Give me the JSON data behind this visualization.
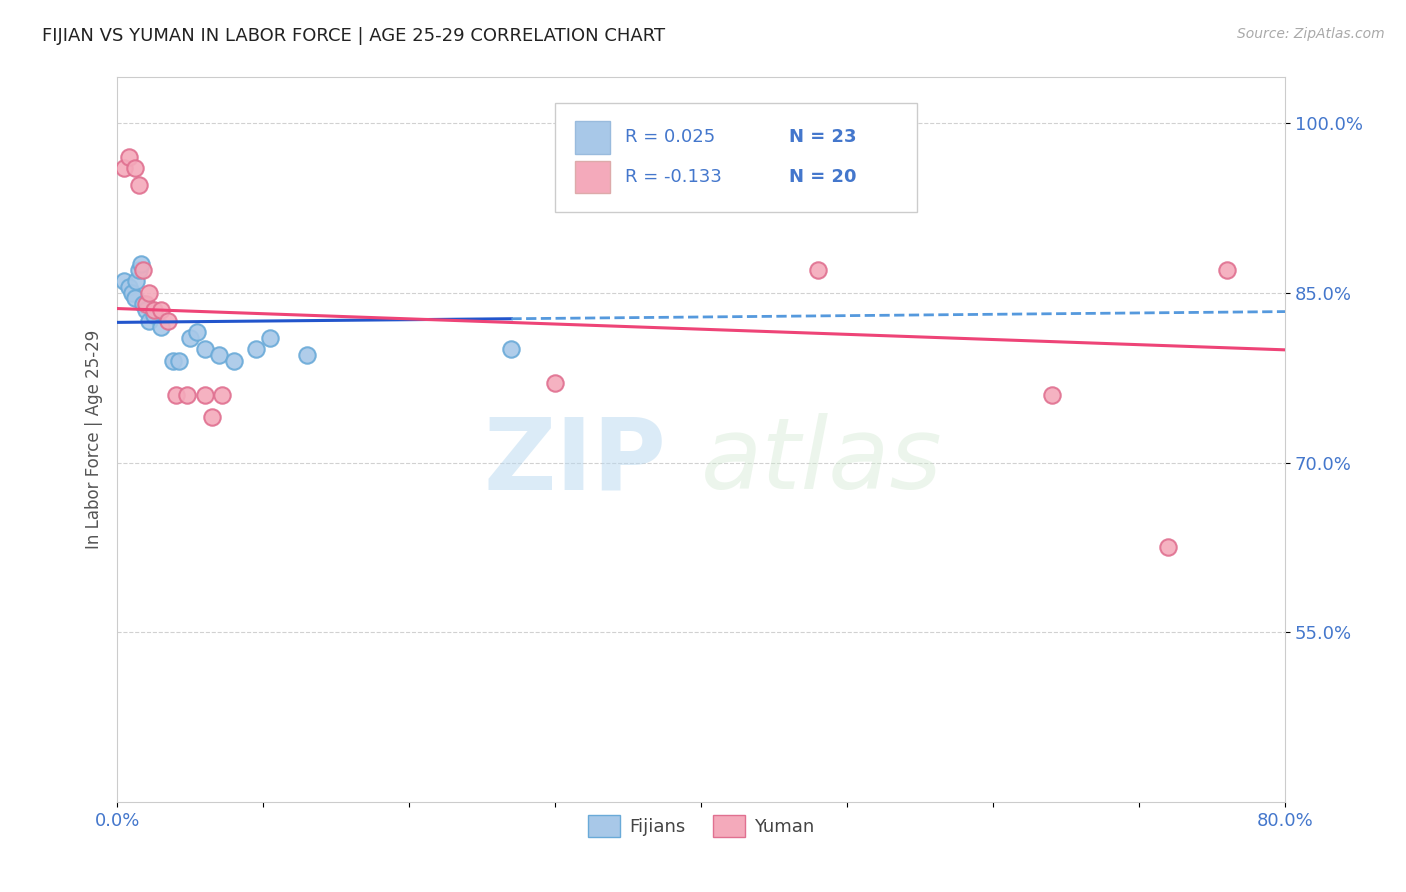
{
  "title": "FIJIAN VS YUMAN IN LABOR FORCE | AGE 25-29 CORRELATION CHART",
  "source_text": "Source: ZipAtlas.com",
  "ylabel": "In Labor Force | Age 25-29",
  "xlim": [
    0.0,
    0.8
  ],
  "ylim": [
    0.4,
    1.04
  ],
  "xticks": [
    0.0,
    0.1,
    0.2,
    0.3,
    0.4,
    0.5,
    0.6,
    0.7,
    0.8
  ],
  "xticklabels": [
    "0.0%",
    "",
    "",
    "",
    "",
    "",
    "",
    "",
    "80.0%"
  ],
  "ytick_positions": [
    0.55,
    0.7,
    0.85,
    1.0
  ],
  "ytick_labels": [
    "55.0%",
    "70.0%",
    "85.0%",
    "100.0%"
  ],
  "fijians_x": [
    0.005,
    0.008,
    0.01,
    0.012,
    0.013,
    0.015,
    0.016,
    0.018,
    0.02,
    0.022,
    0.025,
    0.03,
    0.038,
    0.042,
    0.05,
    0.055,
    0.06,
    0.07,
    0.08,
    0.095,
    0.105,
    0.13,
    0.27
  ],
  "fijians_y": [
    0.86,
    0.855,
    0.85,
    0.845,
    0.86,
    0.87,
    0.875,
    0.84,
    0.835,
    0.825,
    0.83,
    0.82,
    0.79,
    0.79,
    0.81,
    0.815,
    0.8,
    0.795,
    0.79,
    0.8,
    0.81,
    0.795,
    0.8
  ],
  "yuman_x": [
    0.005,
    0.008,
    0.012,
    0.015,
    0.018,
    0.02,
    0.022,
    0.025,
    0.03,
    0.035,
    0.04,
    0.048,
    0.06,
    0.065,
    0.072,
    0.3,
    0.48,
    0.64,
    0.72,
    0.76
  ],
  "yuman_y": [
    0.96,
    0.97,
    0.96,
    0.945,
    0.87,
    0.84,
    0.85,
    0.835,
    0.835,
    0.825,
    0.76,
    0.76,
    0.76,
    0.74,
    0.76,
    0.77,
    0.87,
    0.76,
    0.625,
    0.87
  ],
  "fijians_color": "#a8c8e8",
  "yuman_color": "#f4aabb",
  "fijians_edge_color": "#6aaad8",
  "yuman_edge_color": "#e07090",
  "trend_fijians_solid_color": "#2255cc",
  "trend_fijians_dash_color": "#5599dd",
  "trend_yuman_color": "#ee4477",
  "R_fijians": 0.025,
  "N_fijians": 23,
  "R_yuman": -0.133,
  "N_yuman": 20,
  "legend_fijians_color": "#a8c8e8",
  "legend_yuman_color": "#f4aabb",
  "watermark_zip": "ZIP",
  "watermark_atlas": "atlas",
  "background_color": "#ffffff",
  "grid_color": "#cccccc",
  "title_color": "#222222",
  "axis_label_color": "#555555",
  "ytick_label_color": "#4477cc",
  "xtick_label_color": "#4477cc",
  "legend_color": "#4477cc",
  "marker_size": 140
}
